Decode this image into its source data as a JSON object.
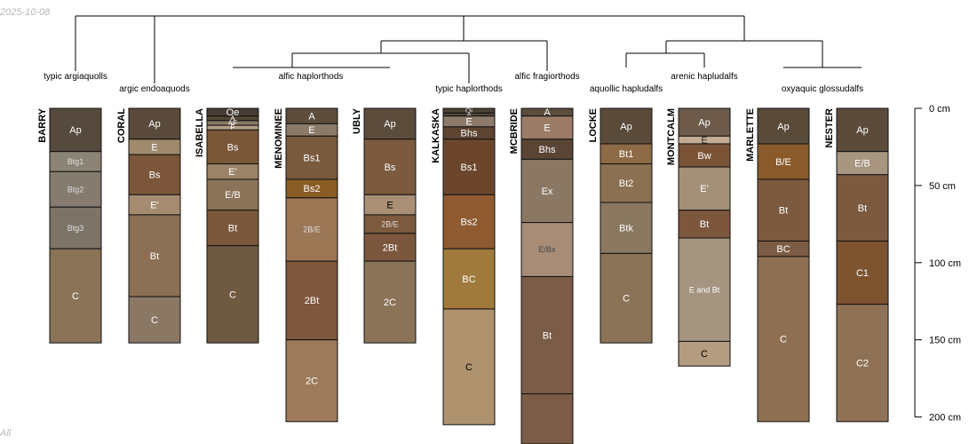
{
  "corner_text": {
    "date": "2025-10-08",
    "footnote": "All"
  },
  "group_labels": [
    "typic argiaquolls",
    "argic endoaquods",
    "alfic haplorthods",
    "typic haplorthods",
    "alfic fragiorthods",
    "aquollic hapludalfs",
    "arenic hapludalfs",
    "oxyaquic glossudalfs"
  ],
  "depth_axis": {
    "unit": "cm",
    "ticks": [
      {
        "depth": 0,
        "label": "0 cm"
      },
      {
        "depth": 50,
        "label": "50 cm"
      },
      {
        "depth": 100,
        "label": "100 cm"
      },
      {
        "depth": 150,
        "label": "150 cm"
      },
      {
        "depth": 200,
        "label": "200 cm"
      }
    ]
  },
  "profiles": [
    {
      "id": "BARRY",
      "horizons": [
        {
          "name": "Ap",
          "top": 0,
          "bottom": 28,
          "color": "#564a3e",
          "label_color": "#ffffff"
        },
        {
          "name": "Btg1",
          "top": 28,
          "bottom": 41,
          "color": "#8b8375",
          "label_color": "#dddddd"
        },
        {
          "name": "Btg2",
          "top": 41,
          "bottom": 64,
          "color": "#857b6f",
          "label_color": "#dddddd"
        },
        {
          "name": "Btg3",
          "top": 64,
          "bottom": 91,
          "color": "#7d7468",
          "label_color": "#dddddd"
        },
        {
          "name": "C",
          "top": 91,
          "bottom": 152,
          "color": "#8b7358",
          "label_color": "#ffffff"
        }
      ]
    },
    {
      "id": "CORAL",
      "horizons": [
        {
          "name": "Ap",
          "top": 0,
          "bottom": 20,
          "color": "#5a4a3b",
          "label_color": "#ffffff"
        },
        {
          "name": "E",
          "top": 20,
          "bottom": 30,
          "color": "#a08a6e",
          "label_color": "#ffffff"
        },
        {
          "name": "Bs",
          "top": 30,
          "bottom": 56,
          "color": "#7b563a",
          "label_color": "#ffffff"
        },
        {
          "name": "E'",
          "top": 56,
          "bottom": 69,
          "color": "#a58c70",
          "label_color": "#ffffff"
        },
        {
          "name": "Bt",
          "top": 69,
          "bottom": 122,
          "color": "#8b7055",
          "label_color": "#ffffff"
        },
        {
          "name": "C",
          "top": 122,
          "bottom": 152,
          "color": "#8a7865",
          "label_color": "#ffffff"
        }
      ]
    },
    {
      "id": "ISABELLA",
      "horizons": [
        {
          "name": "Oe",
          "top": 0,
          "bottom": 5,
          "color": "#463c33",
          "label_color": "#ffffff"
        },
        {
          "name": "A",
          "top": 5,
          "bottom": 8,
          "color": "#524536",
          "label_color": "#ffffff"
        },
        {
          "name": "AE",
          "top": 8,
          "bottom": 11,
          "color": "#8a7965",
          "label_color": "#ffffff"
        },
        {
          "name": "E",
          "top": 11,
          "bottom": 14,
          "color": "#b39e83",
          "label_color": "#ffffff"
        },
        {
          "name": "Bs",
          "top": 14,
          "bottom": 36,
          "color": "#7a5738",
          "label_color": "#ffffff"
        },
        {
          "name": "E'",
          "top": 36,
          "bottom": 46,
          "color": "#9a8368",
          "label_color": "#ffffff"
        },
        {
          "name": "E/B",
          "top": 46,
          "bottom": 66,
          "color": "#8b7359",
          "label_color": "#ffffff"
        },
        {
          "name": "Bt",
          "top": 66,
          "bottom": 89,
          "color": "#7b583b",
          "label_color": "#ffffff"
        },
        {
          "name": "C",
          "top": 89,
          "bottom": 152,
          "color": "#6e5a41",
          "label_color": "#ffffff"
        }
      ]
    },
    {
      "id": "MENOMINEE",
      "horizons": [
        {
          "name": "A",
          "top": 0,
          "bottom": 10,
          "color": "#5c4d3d",
          "label_color": "#ffffff"
        },
        {
          "name": "E",
          "top": 10,
          "bottom": 18,
          "color": "#8b7a67",
          "label_color": "#ffffff"
        },
        {
          "name": "Bs1",
          "top": 18,
          "bottom": 46,
          "color": "#7a5a3d",
          "label_color": "#ffffff"
        },
        {
          "name": "Bs2",
          "top": 46,
          "bottom": 58,
          "color": "#8a5d26",
          "label_color": "#ffffff"
        },
        {
          "name": "2B/E",
          "top": 58,
          "bottom": 99,
          "color": "#9c7756",
          "label_color": "#dddddd"
        },
        {
          "name": "2Bt",
          "top": 99,
          "bottom": 150,
          "color": "#7e573c",
          "label_color": "#ffffff"
        },
        {
          "name": "2C",
          "top": 150,
          "bottom": 203,
          "color": "#9c7a5a",
          "label_color": "#ffffff"
        }
      ]
    },
    {
      "id": "UBLY",
      "horizons": [
        {
          "name": "Ap",
          "top": 0,
          "bottom": 20,
          "color": "#5c4c3c",
          "label_color": "#ffffff"
        },
        {
          "name": "Bs",
          "top": 20,
          "bottom": 56,
          "color": "#7c5a3d",
          "label_color": "#ffffff"
        },
        {
          "name": "E",
          "top": 56,
          "bottom": 69,
          "color": "#a99075",
          "label_color": "#000000"
        },
        {
          "name": "2B/E",
          "top": 69,
          "bottom": 81,
          "color": "#7d5a3e",
          "label_color": "#dddddd"
        },
        {
          "name": "2Bt",
          "top": 81,
          "bottom": 99,
          "color": "#7b583d",
          "label_color": "#ffffff"
        },
        {
          "name": "2C",
          "top": 99,
          "bottom": 152,
          "color": "#8b7358",
          "label_color": "#ffffff"
        }
      ]
    },
    {
      "id": "KALKASKA",
      "horizons": [
        {
          "name": "Oi",
          "top": 0,
          "bottom": 3,
          "color": "#4d4034",
          "label_color": "#dddddd"
        },
        {
          "name": "A",
          "top": 3,
          "bottom": 5,
          "color": "#54463a",
          "label_color": "#dddddd"
        },
        {
          "name": "E",
          "top": 5,
          "bottom": 12,
          "color": "#8c7b68",
          "label_color": "#ffffff"
        },
        {
          "name": "Bhs",
          "top": 12,
          "bottom": 20,
          "color": "#5e4432",
          "label_color": "#ffffff"
        },
        {
          "name": "Bs1",
          "top": 20,
          "bottom": 56,
          "color": "#6b462c",
          "label_color": "#ffffff"
        },
        {
          "name": "Bs2",
          "top": 56,
          "bottom": 91,
          "color": "#8d5a31",
          "label_color": "#ffffff"
        },
        {
          "name": "BC",
          "top": 91,
          "bottom": 130,
          "color": "#a07a3d",
          "label_color": "#ffffff"
        },
        {
          "name": "C",
          "top": 130,
          "bottom": 205,
          "color": "#ae926e",
          "label_color": "#000000"
        }
      ]
    },
    {
      "id": "MCBRIDE",
      "horizons": [
        {
          "name": "A",
          "top": 0,
          "bottom": 5,
          "color": "#5c4c3c",
          "label_color": "#ffffff"
        },
        {
          "name": "E",
          "top": 5,
          "bottom": 20,
          "color": "#9a7b66",
          "label_color": "#ffffff"
        },
        {
          "name": "Bhs",
          "top": 20,
          "bottom": 33,
          "color": "#5a4535",
          "label_color": "#ffffff"
        },
        {
          "name": "Ex",
          "top": 33,
          "bottom": 74,
          "color": "#8a7864",
          "label_color": "#ffffff"
        },
        {
          "name": "E/Bx",
          "top": 74,
          "bottom": 109,
          "color": "#a88c76",
          "label_color": "#444444"
        },
        {
          "name": "Bt",
          "top": 109,
          "bottom": 185,
          "color": "#7b5c46",
          "label_color": "#ffffff"
        },
        {
          "name": "",
          "top": 185,
          "bottom": 220,
          "color": "#7b5c46",
          "label_color": "#ffffff"
        }
      ]
    },
    {
      "id": "LOCKE",
      "horizons": [
        {
          "name": "Ap",
          "top": 0,
          "bottom": 23,
          "color": "#5a4a3a",
          "label_color": "#ffffff"
        },
        {
          "name": "Bt1",
          "top": 23,
          "bottom": 36,
          "color": "#8d6b47",
          "label_color": "#ffffff"
        },
        {
          "name": "Bt2",
          "top": 36,
          "bottom": 61,
          "color": "#8b7052",
          "label_color": "#ffffff"
        },
        {
          "name": "Btk",
          "top": 61,
          "bottom": 94,
          "color": "#8a7860",
          "label_color": "#ffffff"
        },
        {
          "name": "C",
          "top": 94,
          "bottom": 152,
          "color": "#8b7358",
          "label_color": "#ffffff"
        }
      ]
    },
    {
      "id": "MONTCALM",
      "horizons": [
        {
          "name": "Ap",
          "top": 0,
          "bottom": 18,
          "color": "#6d5a4a",
          "label_color": "#ffffff"
        },
        {
          "name": "E",
          "top": 18,
          "bottom": 23,
          "color": "#c2ad93",
          "label_color": "#333333"
        },
        {
          "name": "Bw",
          "top": 23,
          "bottom": 38,
          "color": "#7b5437",
          "label_color": "#ffffff"
        },
        {
          "name": "E'",
          "top": 38,
          "bottom": 66,
          "color": "#a39079",
          "label_color": "#ffffff"
        },
        {
          "name": "Bt",
          "top": 66,
          "bottom": 84,
          "color": "#7d563e",
          "label_color": "#ffffff"
        },
        {
          "name": "E and Bt",
          "top": 84,
          "bottom": 151,
          "color": "#a49480",
          "label_color": "#ffffff"
        },
        {
          "name": "C",
          "top": 151,
          "bottom": 167,
          "color": "#b39c80",
          "label_color": "#000000"
        }
      ]
    },
    {
      "id": "MARLETTE",
      "horizons": [
        {
          "name": "Ap",
          "top": 0,
          "bottom": 23,
          "color": "#5a4a3a",
          "label_color": "#ffffff"
        },
        {
          "name": "B/E",
          "top": 23,
          "bottom": 46,
          "color": "#8a5a2b",
          "label_color": "#ffffff"
        },
        {
          "name": "Bt",
          "top": 46,
          "bottom": 86,
          "color": "#7b5a40",
          "label_color": "#ffffff"
        },
        {
          "name": "BC",
          "top": 86,
          "bottom": 96,
          "color": "#7d5c45",
          "label_color": "#ffffff"
        },
        {
          "name": "C",
          "top": 96,
          "bottom": 203,
          "color": "#8f6f52",
          "label_color": "#ffffff"
        }
      ]
    },
    {
      "id": "NESTER",
      "horizons": [
        {
          "name": "Ap",
          "top": 0,
          "bottom": 28,
          "color": "#5c4b3b",
          "label_color": "#ffffff"
        },
        {
          "name": "E/B",
          "top": 28,
          "bottom": 43,
          "color": "#a89580",
          "label_color": "#ffffff"
        },
        {
          "name": "Bt",
          "top": 43,
          "bottom": 86,
          "color": "#7b5a40",
          "label_color": "#ffffff"
        },
        {
          "name": "C1",
          "top": 86,
          "bottom": 127,
          "color": "#7d5330",
          "label_color": "#ffffff"
        },
        {
          "name": "C2",
          "top": 127,
          "bottom": 203,
          "color": "#8f7255",
          "label_color": "#ffffff"
        }
      ]
    }
  ]
}
